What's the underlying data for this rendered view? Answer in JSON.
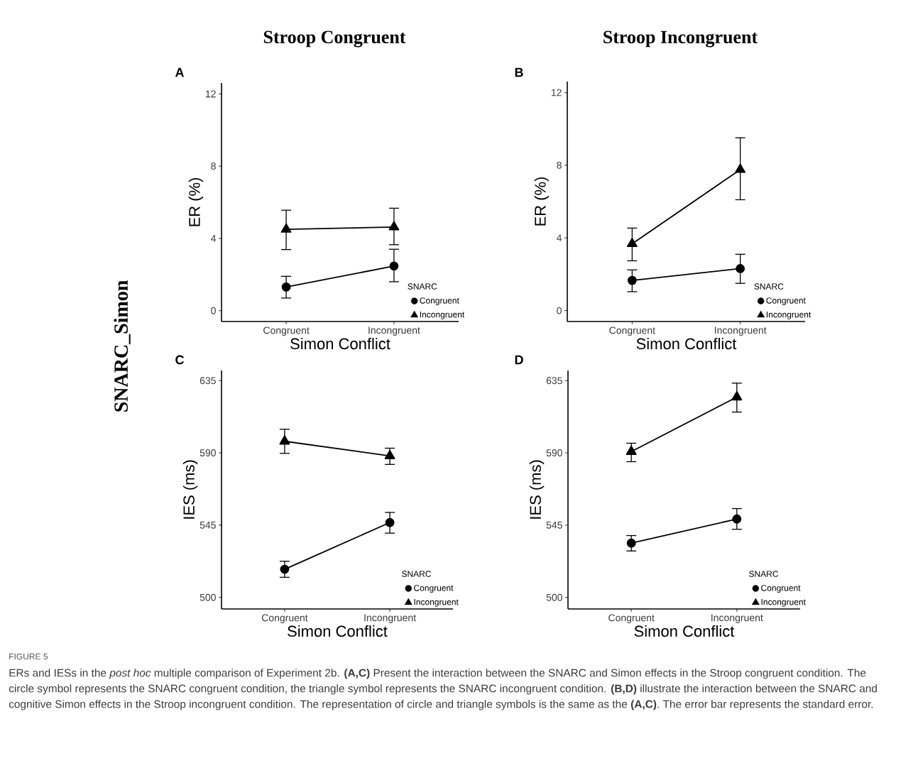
{
  "chart_data": [
    {
      "type": "line",
      "title": "Stroop Congruent",
      "xlabel": "Simon Conflict",
      "ylabel": "ER (%)",
      "legend_title": "SNARC",
      "legend": "bottom right",
      "grid": false,
      "line_style": "solid",
      "categories": [
        "Congruent",
        "Incongruent"
      ],
      "ylim": [
        -0.6,
        12.6
      ],
      "yticks": [
        0,
        4,
        8,
        12
      ],
      "annotations": [
        "A",
        "SNARC_Simon"
      ],
      "series": [
        {
          "name": "Congruent",
          "color": "#000000",
          "marker": "circle",
          "values": [
            1.31,
            2.47
          ],
          "errors": [
            [
              0.7,
              1.9
            ],
            [
              1.6,
              3.4
            ]
          ]
        },
        {
          "name": "Incongruent",
          "color": "#000000",
          "marker": "triangle",
          "values": [
            4.5,
            4.63
          ],
          "errors": [
            [
              3.38,
              5.56
            ],
            [
              3.65,
              5.67
            ]
          ]
        }
      ]
    },
    {
      "type": "line",
      "title": "Stroop Incongruent",
      "xlabel": "Simon Conflict",
      "ylabel": "ER (%)",
      "legend_title": "SNARC",
      "legend": "bottom right",
      "grid": false,
      "line_style": "solid",
      "categories": [
        "Congruent",
        "Incongruent"
      ],
      "ylim": [
        -0.6,
        12.6
      ],
      "yticks": [
        0,
        4,
        8,
        12
      ],
      "annotations": [
        "B"
      ],
      "series": [
        {
          "name": "Congruent",
          "color": "#000000",
          "marker": "circle",
          "values": [
            1.66,
            2.31
          ],
          "errors": [
            [
              1.04,
              2.24
            ],
            [
              1.5,
              3.1
            ]
          ]
        },
        {
          "name": "Incongruent",
          "color": "#000000",
          "marker": "triangle",
          "values": [
            3.68,
            7.76
          ],
          "errors": [
            [
              2.74,
              4.54
            ],
            [
              6.1,
              9.51
            ]
          ]
        }
      ]
    },
    {
      "type": "line",
      "xlabel": "Simon Conflict",
      "ylabel": "IES (ms)",
      "legend_title": "SNARC",
      "legend": "bottom right",
      "grid": false,
      "line_style": "solid",
      "categories": [
        "Congruent",
        "Incongruent"
      ],
      "ylim": [
        492.8,
        641.3
      ],
      "yticks": [
        500,
        545,
        590,
        635
      ],
      "annotations": [
        "C"
      ],
      "series": [
        {
          "name": "Congruent",
          "color": "#000000",
          "marker": "circle",
          "values": [
            517.5,
            546.6
          ],
          "errors": [
            [
              512.5,
              522.5
            ],
            [
              540,
              552.9
            ]
          ]
        },
        {
          "name": "Incongruent",
          "color": "#000000",
          "marker": "triangle",
          "values": [
            597.2,
            588.1
          ],
          "errors": [
            [
              589.7,
              604.7
            ],
            [
              582.8,
              592.9
            ]
          ]
        }
      ]
    },
    {
      "type": "line",
      "xlabel": "Simon Conflict",
      "ylabel": "IES (ms)",
      "legend_title": "SNARC",
      "legend": "bottom right",
      "grid": false,
      "line_style": "solid",
      "categories": [
        "Congruent",
        "Incongruent"
      ],
      "ylim": [
        492.8,
        641.3
      ],
      "yticks": [
        500,
        545,
        590,
        635
      ],
      "annotations": [
        "D",
        "FIGURE 5",
        "ERs and IESs in the *post hoc* multiple comparison of Experiment 2b. **(A,C)** Present the interaction between the SNARC and Simon effects in the Stroop congruent condition. The circle symbol represents the SNARC congruent condition, the triangle symbol represents the SNARC incongruent condition. **(B,D)** illustrate the interaction between the SNARC and cognitive Simon effects in the Stroop incongruent condition. The representation of circle and triangle symbols is the same as the **(A,C)**. The error bar represents the standard error."
      ],
      "series": [
        {
          "name": "Congruent",
          "color": "#000000",
          "marker": "circle",
          "values": [
            533.8,
            548.8
          ],
          "errors": [
            [
              528.9,
              538.5
            ],
            [
              542.4,
              555.3
            ]
          ]
        },
        {
          "name": "Incongruent",
          "color": "#000000",
          "marker": "triangle",
          "values": [
            590.8,
            624.7
          ],
          "errors": [
            [
              584.5,
              596
            ],
            [
              615.4,
              633.4
            ]
          ]
        }
      ]
    }
  ]
}
